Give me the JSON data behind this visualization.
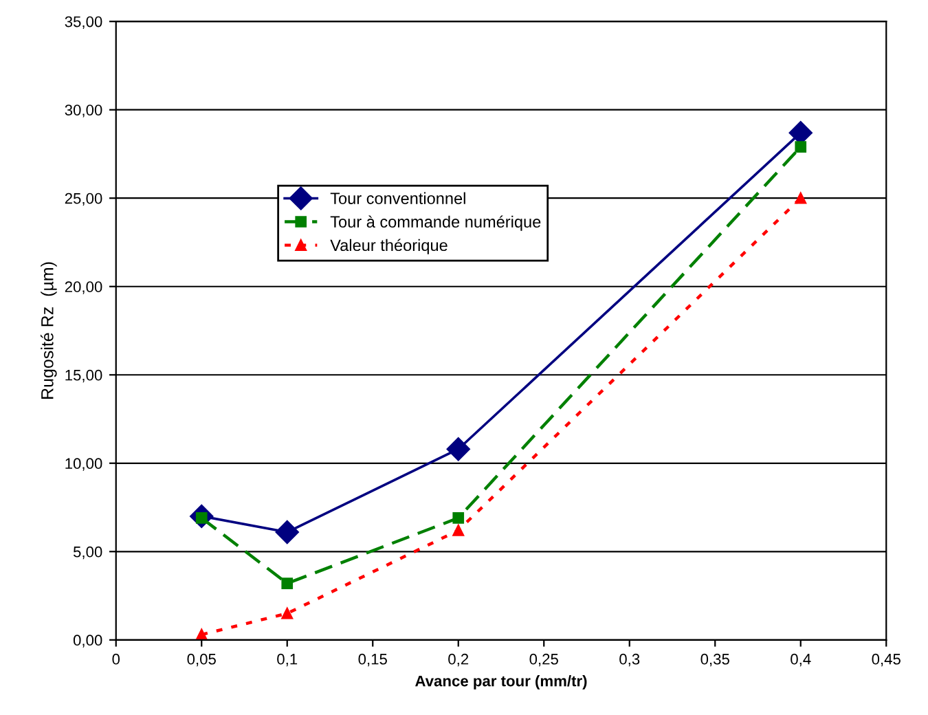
{
  "chart_data": {
    "type": "line",
    "xlabel": "Avance par tour (mm/tr)",
    "ylabel": "Rugosité Rz  (µm)",
    "x": [
      0.05,
      0.1,
      0.2,
      0.4
    ],
    "series": [
      {
        "name": "Tour conventionnel",
        "color": "#000080",
        "values": [
          7.0,
          6.1,
          10.8,
          28.7
        ],
        "marker": "diamond",
        "line_style": "solid"
      },
      {
        "name": "Tour à commande numérique",
        "color": "#008000",
        "values": [
          6.9,
          3.2,
          6.9,
          27.9
        ],
        "marker": "square",
        "line_style": "dashed"
      },
      {
        "name": "Valeur théorique",
        "color": "#ff0000",
        "values": [
          0.3,
          1.5,
          6.2,
          25.0
        ],
        "marker": "triangle",
        "line_style": "dotted"
      }
    ],
    "xlim": [
      0,
      0.45
    ],
    "xticks": [
      0,
      {
        "value": 0.05,
        "label": "0,05"
      },
      {
        "value": 0.1,
        "label": "0,1"
      },
      {
        "value": 0.15,
        "label": "0,15"
      },
      {
        "value": 0.2,
        "label": "0,2"
      },
      {
        "value": 0.25,
        "label": "0,25"
      },
      {
        "value": 0.3,
        "label": "0,3"
      },
      {
        "value": 0.35,
        "label": "0,35"
      },
      {
        "value": 0.4,
        "label": "0,4"
      },
      {
        "value": 0.45,
        "label": "0,45"
      }
    ],
    "ylim": [
      0,
      35
    ],
    "yticks": [
      {
        "value": 0,
        "label": "0,00"
      },
      {
        "value": 5,
        "label": "5,00"
      },
      {
        "value": 10,
        "label": "10,00"
      },
      {
        "value": 15,
        "label": "15,00"
      },
      {
        "value": 20,
        "label": "20,00"
      },
      {
        "value": 25,
        "label": "25,00"
      },
      {
        "value": 30,
        "label": "30,00"
      },
      {
        "value": 35,
        "label": "35,00"
      }
    ],
    "grid": "y",
    "legend": "top left"
  }
}
